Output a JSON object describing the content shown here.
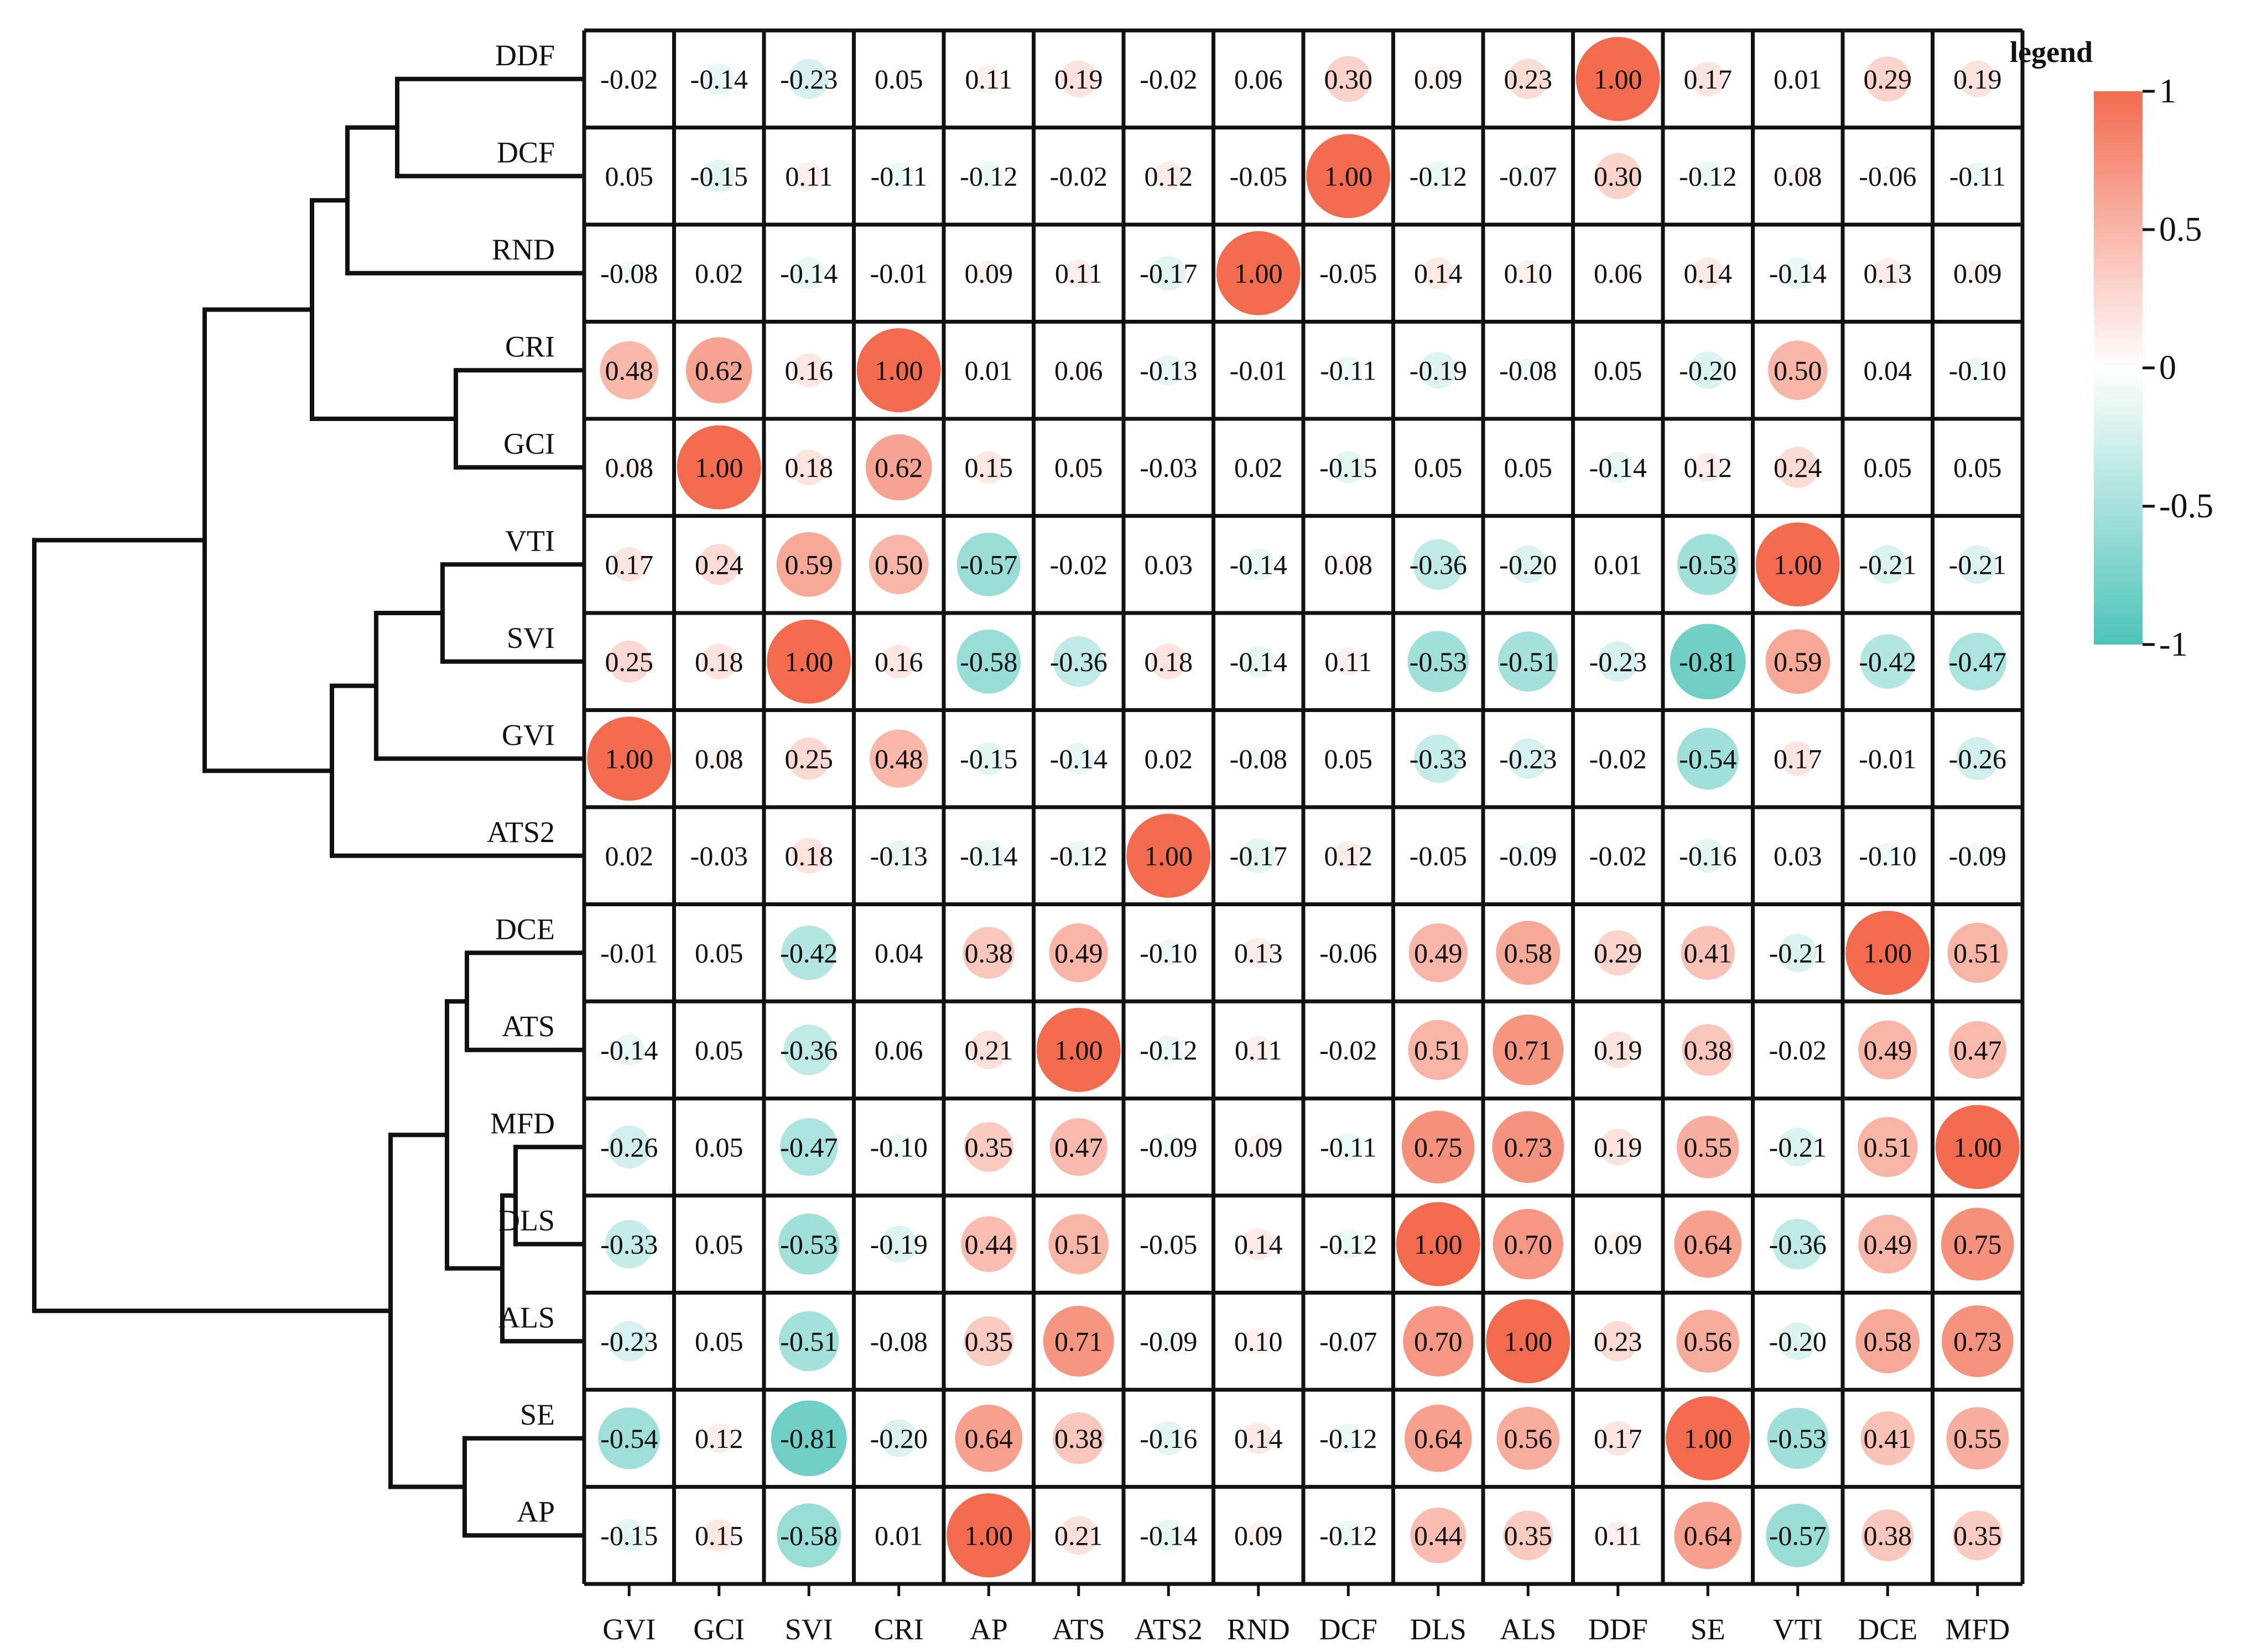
{
  "chart_data": {
    "type": "heatmap",
    "title": "",
    "legend": {
      "title": "legend",
      "placement": "right",
      "ticks": [
        "1",
        "0.5",
        "0",
        "-0.5",
        "-1"
      ],
      "tick_values": [
        1,
        0.5,
        0,
        -0.5,
        -1
      ],
      "colors": {
        "positive": "#F26B4E",
        "zero": "#FFFFFF",
        "negative": "#4DC4B8"
      }
    },
    "row_labels": [
      "DDF",
      "DCF",
      "RND",
      "CRI",
      "GCI",
      "VTI",
      "SVI",
      "GVI",
      "ATS2",
      "DCE",
      "ATS",
      "MFD",
      "DLS",
      "ALS",
      "SE",
      "AP"
    ],
    "col_labels": [
      "GVI",
      "GCI",
      "SVI",
      "CRI",
      "AP",
      "ATS",
      "ATS2",
      "RND",
      "DCF",
      "DLS",
      "ALS",
      "DDF",
      "SE",
      "VTI",
      "DCE",
      "MFD"
    ],
    "value_labels": [
      [
        "-0.02",
        "-0.14",
        "-0.23",
        "0.05",
        "0.11",
        "0.19",
        "-0.02",
        "0.06",
        "0.30",
        "0.09",
        "0.23",
        "1.00",
        "0.17",
        "0.01",
        "0.29",
        "0.19"
      ],
      [
        "0.05",
        "-0.15",
        "0.11",
        "-0.11",
        "-0.12",
        "-0.02",
        "0.12",
        "-0.05",
        "1.00",
        "-0.12",
        "-0.07",
        "0.30",
        "-0.12",
        "0.08",
        "-0.06",
        "-0.11"
      ],
      [
        "-0.08",
        "0.02",
        "-0.14",
        "-0.01",
        "0.09",
        "0.11",
        "-0.17",
        "1.00",
        "-0.05",
        "0.14",
        "0.10",
        "0.06",
        "0.14",
        "-0.14",
        "0.13",
        "0.09"
      ],
      [
        "0.48",
        "0.62",
        "0.16",
        "1.00",
        "0.01",
        "0.06",
        "-0.13",
        "-0.01",
        "-0.11",
        "-0.19",
        "-0.08",
        "0.05",
        "-0.20",
        "0.50",
        "0.04",
        "-0.10"
      ],
      [
        "0.08",
        "1.00",
        "0.18",
        "0.62",
        "0.15",
        "0.05",
        "-0.03",
        "0.02",
        "-0.15",
        "0.05",
        "0.05",
        "-0.14",
        "0.12",
        "0.24",
        "0.05",
        "0.05"
      ],
      [
        "0.17",
        "0.24",
        "0.59",
        "0.50",
        "-0.57",
        "-0.02",
        "0.03",
        "-0.14",
        "0.08",
        "-0.36",
        "-0.20",
        "0.01",
        "-0.53",
        "1.00",
        "-0.21",
        "-0.21"
      ],
      [
        "0.25",
        "0.18",
        "1.00",
        "0.16",
        "-0.58",
        "-0.36",
        "0.18",
        "-0.14",
        "0.11",
        "-0.53",
        "-0.51",
        "-0.23",
        "-0.81",
        "0.59",
        "-0.42",
        "-0.47"
      ],
      [
        "1.00",
        "0.08",
        "0.25",
        "0.48",
        "-0.15",
        "-0.14",
        "0.02",
        "-0.08",
        "0.05",
        "-0.33",
        "-0.23",
        "-0.02",
        "-0.54",
        "0.17",
        "-0.01",
        "-0.26"
      ],
      [
        "0.02",
        "-0.03",
        "0.18",
        "-0.13",
        "-0.14",
        "-0.12",
        "1.00",
        "-0.17",
        "0.12",
        "-0.05",
        "-0.09",
        "-0.02",
        "-0.16",
        "0.03",
        "-0.10",
        "-0.09"
      ],
      [
        "-0.01",
        "0.05",
        "-0.42",
        "0.04",
        "0.38",
        "0.49",
        "-0.10",
        "0.13",
        "-0.06",
        "0.49",
        "0.58",
        "0.29",
        "0.41",
        "-0.21",
        "1.00",
        "0.51"
      ],
      [
        "-0.14",
        "0.05",
        "-0.36",
        "0.06",
        "0.21",
        "1.00",
        "-0.12",
        "0.11",
        "-0.02",
        "0.51",
        "0.71",
        "0.19",
        "0.38",
        "-0.02",
        "0.49",
        "0.47"
      ],
      [
        "-0.26",
        "0.05",
        "-0.47",
        "-0.10",
        "0.35",
        "0.47",
        "-0.09",
        "0.09",
        "-0.11",
        "0.75",
        "0.73",
        "0.19",
        "0.55",
        "-0.21",
        "0.51",
        "1.00"
      ],
      [
        "-0.33",
        "0.05",
        "-0.53",
        "-0.19",
        "0.44",
        "0.51",
        "-0.05",
        "0.14",
        "-0.12",
        "1.00",
        "0.70",
        "0.09",
        "0.64",
        "-0.36",
        "0.49",
        "0.75"
      ],
      [
        "-0.23",
        "0.05",
        "-0.51",
        "-0.08",
        "0.35",
        "0.71",
        "-0.09",
        "0.10",
        "-0.07",
        "0.70",
        "1.00",
        "0.23",
        "0.56",
        "-0.20",
        "0.58",
        "0.73"
      ],
      [
        "-0.54",
        "0.12",
        "-0.81",
        "-0.20",
        "0.64",
        "0.38",
        "-0.16",
        "0.14",
        "-0.12",
        "0.64",
        "0.56",
        "0.17",
        "1.00",
        "-0.53",
        "0.41",
        "0.55"
      ],
      [
        "-0.15",
        "0.15",
        "-0.58",
        "0.01",
        "1.00",
        "0.21",
        "-0.14",
        "0.09",
        "-0.12",
        "0.44",
        "0.35",
        "0.11",
        "0.64",
        "-0.57",
        "0.38",
        "0.35"
      ]
    ],
    "dendrogram": {
      "placement": "left",
      "merges": [
        [
          "DDF",
          "DCF"
        ],
        [
          "DDF+DCF",
          "RND"
        ],
        [
          "CRI",
          "GCI"
        ],
        [
          "DDF+DCF+RND",
          "CRI+GCI"
        ],
        [
          "VTI",
          "SVI"
        ],
        [
          "VTI+SVI",
          "GVI"
        ],
        [
          "VTI+SVI+GVI",
          "ATS2"
        ],
        [
          "DDF+DCF+RND+CRI+GCI",
          "VTI+SVI+GVI+ATS2"
        ],
        [
          "DCE",
          "ATS"
        ],
        [
          "MFD",
          "DLS"
        ],
        [
          "MFD+DLS",
          "ALS"
        ],
        [
          "DCE+ATS",
          "MFD+DLS+ALS"
        ],
        [
          "SE",
          "AP"
        ],
        [
          "DCE+ATS+MFD+DLS+ALS",
          "SE+AP"
        ],
        [
          "DDF+DCF+RND+CRI+GCI+VTI+SVI+GVI+ATS2",
          "DCE+ATS+MFD+DLS+ALS+SE+AP"
        ]
      ]
    }
  }
}
